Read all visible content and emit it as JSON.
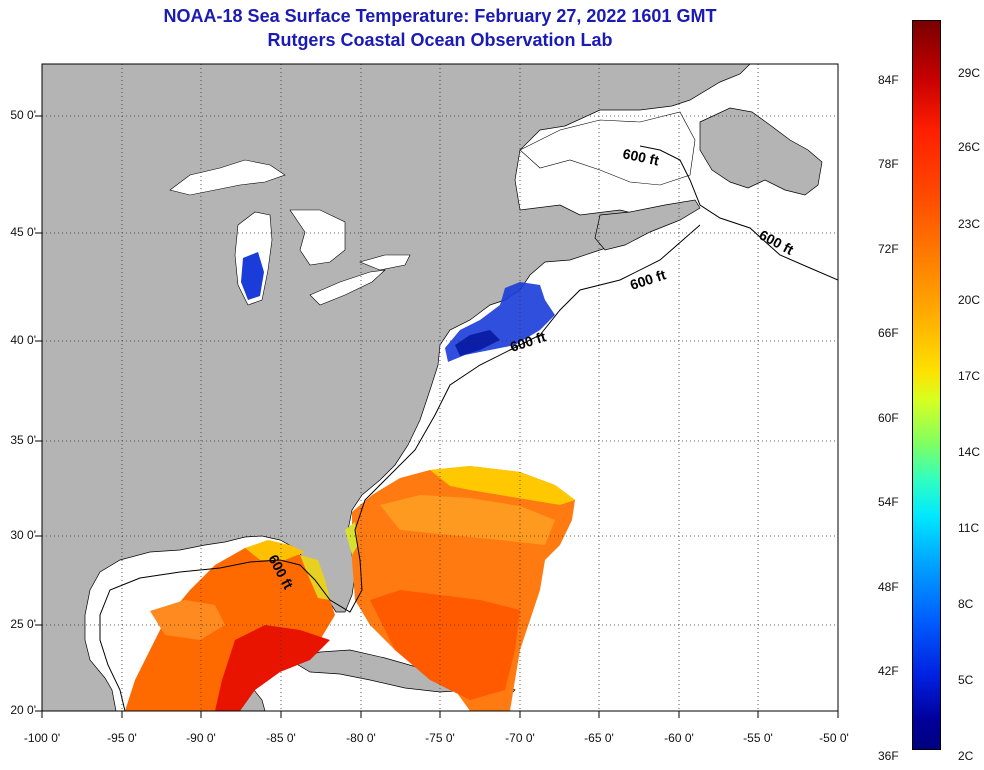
{
  "header": {
    "title": "NOAA-18 Sea Surface Temperature:  February 27, 2022 1601 GMT",
    "subtitle": "Rutgers Coastal Ocean Observation Lab"
  },
  "axes": {
    "lat_labels": [
      "50 0'",
      "45 0'",
      "40 0'",
      "35 0'",
      "30 0'",
      "25 0'",
      "20 0'"
    ],
    "lon_labels": [
      "-100 0'",
      "-95 0'",
      "-90 0'",
      "-85 0'",
      "-80 0'",
      "-75 0'",
      "-70 0'",
      "-65 0'",
      "-60 0'",
      "-55 0'",
      "-50 0'"
    ],
    "lat_range": [
      20,
      52.6
    ],
    "lon_range": [
      -100,
      -50
    ]
  },
  "isobath_label": "600 ft",
  "colorbar": {
    "f_labels": [
      "84F",
      "78F",
      "72F",
      "66F",
      "60F",
      "54F",
      "48F",
      "42F",
      "36F"
    ],
    "c_labels": [
      "29C",
      "26C",
      "23C",
      "20C",
      "17C",
      "14C",
      "11C",
      "8C",
      "5C",
      "2C"
    ]
  },
  "colors": {
    "land": "#b4b4b4",
    "ocean_nodata": "#ffffff",
    "title": "#1a1ab4",
    "cold": "#1a3cd8",
    "warm": "#ff5a00",
    "hot": "#e81400",
    "mild": "#ffc800"
  }
}
